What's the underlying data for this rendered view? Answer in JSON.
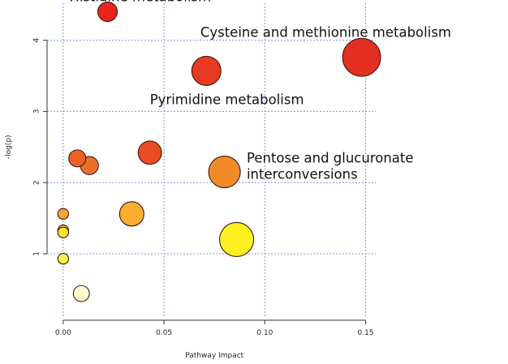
{
  "chart_data": {
    "type": "scatter",
    "title": "",
    "xlabel": "Pathway Impact",
    "ylabel": "-log(p)",
    "xlim": [
      -0.008,
      0.155
    ],
    "ylim": [
      0.1,
      4.52
    ],
    "x_ticks": [
      0.0,
      0.05,
      0.1,
      0.15
    ],
    "x_tick_labels": [
      "0.00",
      "0.05",
      "0.10",
      "0.15"
    ],
    "y_ticks": [
      1,
      2,
      3,
      4
    ],
    "y_tick_labels": [
      "1",
      "2",
      "3",
      "4"
    ],
    "grid": true,
    "legend": "none",
    "points": [
      {
        "x": 0.022,
        "y": 4.4,
        "size": 0.4,
        "color": "#e8251c"
      },
      {
        "x": 0.071,
        "y": 3.57,
        "size": 0.6,
        "color": "#e63a22"
      },
      {
        "x": 0.148,
        "y": 3.76,
        "size": 0.78,
        "color": "#e42f20"
      },
      {
        "x": 0.043,
        "y": 2.42,
        "size": 0.48,
        "color": "#ea4c24"
      },
      {
        "x": 0.007,
        "y": 2.34,
        "size": 0.35,
        "color": "#ec6226"
      },
      {
        "x": 0.013,
        "y": 2.24,
        "size": 0.37,
        "color": "#ef6f28"
      },
      {
        "x": 0.08,
        "y": 2.15,
        "size": 0.65,
        "color": "#f28a2a"
      },
      {
        "x": 0.034,
        "y": 1.56,
        "size": 0.5,
        "color": "#f7ae31"
      },
      {
        "x": 0.086,
        "y": 1.2,
        "size": 0.7,
        "color": "#fdf020"
      },
      {
        "x": 0.0,
        "y": 1.56,
        "size": 0.22,
        "color": "#f8a733"
      },
      {
        "x": 0.0,
        "y": 1.33,
        "size": 0.22,
        "color": "#fbd229"
      },
      {
        "x": 0.0,
        "y": 1.3,
        "size": 0.22,
        "color": "#fce026"
      },
      {
        "x": 0.0,
        "y": 0.93,
        "size": 0.22,
        "color": "#fff045"
      },
      {
        "x": 0.009,
        "y": 0.44,
        "size": 0.33,
        "color": "#fefbd0"
      }
    ],
    "annotations": [
      {
        "lines": [
          "Histidine metabolism"
        ],
        "x": 0.003,
        "y": 4.55
      },
      {
        "lines": [
          "Cysteine and methionine metabolism"
        ],
        "x": 0.068,
        "y": 4.05
      },
      {
        "lines": [
          "Pyrimidine metabolism"
        ],
        "x": 0.043,
        "y": 3.1
      },
      {
        "lines": [
          "Pentose and glucuronate",
          "interconversions"
        ],
        "x": 0.091,
        "y": 2.28
      }
    ]
  }
}
